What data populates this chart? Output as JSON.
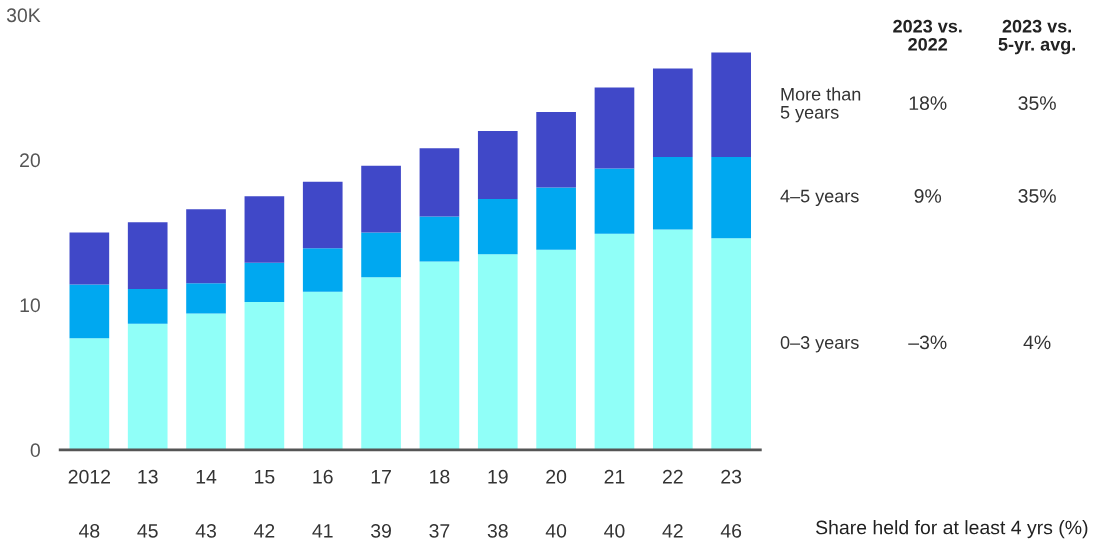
{
  "chart_data": {
    "type": "bar",
    "stacked": true,
    "categories": [
      "2012",
      "13",
      "14",
      "15",
      "16",
      "17",
      "18",
      "19",
      "20",
      "21",
      "22",
      "23"
    ],
    "series": [
      {
        "name": "0–3 years",
        "color": "#90fff8",
        "values": [
          7.7,
          8.7,
          9.4,
          10.2,
          10.9,
          11.9,
          13.0,
          13.5,
          13.8,
          14.9,
          15.2,
          14.6
        ]
      },
      {
        "name": "4–5 years",
        "color": "#00a8f0",
        "values": [
          3.7,
          2.4,
          2.1,
          2.7,
          3.0,
          3.1,
          3.1,
          3.8,
          4.3,
          4.5,
          5.0,
          5.6
        ]
      },
      {
        "name": "More than\n5 years",
        "color": "#4048c8",
        "values": [
          3.6,
          4.6,
          5.1,
          4.6,
          4.6,
          4.6,
          4.7,
          4.7,
          5.2,
          5.6,
          6.1,
          7.2
        ]
      }
    ],
    "ylim": [
      0,
      30
    ],
    "yticks": [
      0,
      10,
      20,
      {
        "value": 30,
        "label": "30K"
      }
    ],
    "grid": false,
    "legend": "right",
    "annotations": [
      "2023 vs.\n2022",
      "2023 vs.\n5-yr. avg.",
      "–3%",
      "4%",
      "9%",
      "35%",
      "18%",
      "35%",
      "48",
      "45",
      "43",
      "42",
      "41",
      "39",
      "37",
      "38",
      "40",
      "40",
      "42",
      "46",
      "Share held for at least 4 yrs (%)"
    ]
  }
}
